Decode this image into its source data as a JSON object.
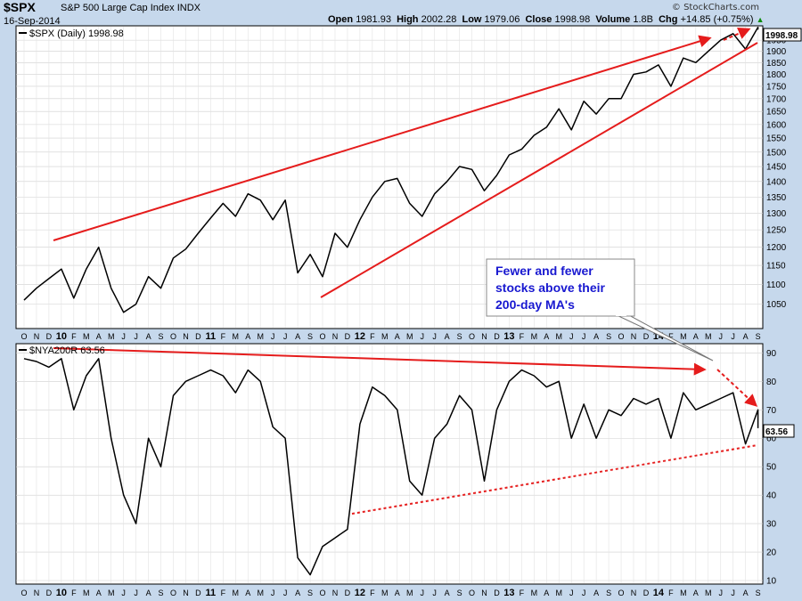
{
  "header": {
    "symbol": "$SPX",
    "name": "S&P 500 Large Cap Index",
    "exchange": "INDX",
    "date": "16-Sep-2014",
    "open_label": "Open",
    "open": "1981.93",
    "high_label": "High",
    "high": "2002.28",
    "low_label": "Low",
    "low": "1979.06",
    "close_label": "Close",
    "close": "1998.98",
    "volume_label": "Volume",
    "volume": "1.8B",
    "chg_label": "Chg",
    "chg": "+14.85 (+0.75%)",
    "brand": "© StockCharts.com"
  },
  "colors": {
    "background": "#c6d8ec",
    "panel": "#ffffff",
    "price_line": "#000000",
    "trend": "#e51c1c",
    "annotation_text": "#1818d0"
  },
  "annotation": {
    "lines": [
      "Fewer and fewer",
      "stocks above their",
      "200-day MA's"
    ]
  },
  "time_axis": {
    "labels": [
      "O",
      "N",
      "D",
      "10",
      "F",
      "M",
      "A",
      "M",
      "J",
      "J",
      "A",
      "S",
      "O",
      "N",
      "D",
      "11",
      "F",
      "M",
      "A",
      "M",
      "J",
      "J",
      "A",
      "S",
      "O",
      "N",
      "D",
      "12",
      "F",
      "M",
      "A",
      "M",
      "J",
      "J",
      "A",
      "S",
      "O",
      "N",
      "D",
      "13",
      "F",
      "M",
      "A",
      "M",
      "J",
      "J",
      "A",
      "S",
      "O",
      "N",
      "D",
      "14",
      "F",
      "M",
      "A",
      "M",
      "J",
      "J",
      "A",
      "S"
    ]
  },
  "chart_data": [
    {
      "type": "line",
      "title": "$SPX (Daily) 1998.98",
      "last_value": "1998.98",
      "x_range": [
        "2009-10",
        "2014-09"
      ],
      "ylim": [
        1000,
        2000
      ],
      "yscale": "log",
      "y_ticks": [
        1050,
        1100,
        1150,
        1200,
        1250,
        1300,
        1350,
        1400,
        1450,
        1500,
        1550,
        1600,
        1650,
        1700,
        1750,
        1800,
        1850,
        1900,
        1950
      ],
      "series": [
        {
          "name": "$SPX (Daily)",
          "points": [
            [
              "2009-10",
              1060
            ],
            [
              "2009-11",
              1090
            ],
            [
              "2009-12",
              1115
            ],
            [
              "2010-01",
              1140
            ],
            [
              "2010-02",
              1065
            ],
            [
              "2010-03",
              1140
            ],
            [
              "2010-04",
              1200
            ],
            [
              "2010-05",
              1090
            ],
            [
              "2010-06",
              1030
            ],
            [
              "2010-07",
              1050
            ],
            [
              "2010-08",
              1120
            ],
            [
              "2010-09",
              1090
            ],
            [
              "2010-10",
              1170
            ],
            [
              "2010-11",
              1195
            ],
            [
              "2010-12",
              1240
            ],
            [
              "2011-01",
              1285
            ],
            [
              "2011-02",
              1330
            ],
            [
              "2011-03",
              1290
            ],
            [
              "2011-04",
              1360
            ],
            [
              "2011-05",
              1340
            ],
            [
              "2011-06",
              1280
            ],
            [
              "2011-07",
              1340
            ],
            [
              "2011-08",
              1130
            ],
            [
              "2011-09",
              1180
            ],
            [
              "2011-10",
              1120
            ],
            [
              "2011-11",
              1240
            ],
            [
              "2011-12",
              1200
            ],
            [
              "2012-01",
              1280
            ],
            [
              "2012-02",
              1350
            ],
            [
              "2012-03",
              1400
            ],
            [
              "2012-04",
              1410
            ],
            [
              "2012-05",
              1330
            ],
            [
              "2012-06",
              1290
            ],
            [
              "2012-07",
              1360
            ],
            [
              "2012-08",
              1400
            ],
            [
              "2012-09",
              1450
            ],
            [
              "2012-10",
              1440
            ],
            [
              "2012-11",
              1370
            ],
            [
              "2012-12",
              1420
            ],
            [
              "2013-01",
              1490
            ],
            [
              "2013-02",
              1510
            ],
            [
              "2013-03",
              1560
            ],
            [
              "2013-04",
              1590
            ],
            [
              "2013-05",
              1660
            ],
            [
              "2013-06",
              1580
            ],
            [
              "2013-07",
              1690
            ],
            [
              "2013-08",
              1640
            ],
            [
              "2013-09",
              1700
            ],
            [
              "2013-10",
              1700
            ],
            [
              "2013-11",
              1800
            ],
            [
              "2013-12",
              1810
            ],
            [
              "2014-01",
              1840
            ],
            [
              "2014-02",
              1750
            ],
            [
              "2014-03",
              1870
            ],
            [
              "2014-04",
              1850
            ],
            [
              "2014-05",
              1900
            ],
            [
              "2014-06",
              1950
            ],
            [
              "2014-07",
              1980
            ],
            [
              "2014-08",
              1910
            ],
            [
              "2014-09",
              2010
            ],
            [
              "2014-09-16",
              1999
            ]
          ]
        }
      ]
    },
    {
      "type": "line",
      "title": "$NYA200R 63.56",
      "last_value": "63.56",
      "x_range": [
        "2009-10",
        "2014-09"
      ],
      "ylim": [
        10,
        92
      ],
      "y_ticks": [
        10,
        20,
        30,
        40,
        50,
        60,
        70,
        80,
        90
      ],
      "series": [
        {
          "name": "$NYA200R",
          "points": [
            [
              "2009-10",
              88
            ],
            [
              "2009-11",
              87
            ],
            [
              "2009-12",
              85
            ],
            [
              "2010-01",
              88
            ],
            [
              "2010-02",
              70
            ],
            [
              "2010-03",
              82
            ],
            [
              "2010-04",
              88
            ],
            [
              "2010-05",
              60
            ],
            [
              "2010-06",
              40
            ],
            [
              "2010-07",
              30
            ],
            [
              "2010-08",
              60
            ],
            [
              "2010-09",
              50
            ],
            [
              "2010-10",
              75
            ],
            [
              "2010-11",
              80
            ],
            [
              "2010-12",
              82
            ],
            [
              "2011-01",
              84
            ],
            [
              "2011-02",
              82
            ],
            [
              "2011-03",
              76
            ],
            [
              "2011-04",
              84
            ],
            [
              "2011-05",
              80
            ],
            [
              "2011-06",
              64
            ],
            [
              "2011-07",
              60
            ],
            [
              "2011-08",
              18
            ],
            [
              "2011-09",
              12
            ],
            [
              "2011-10",
              22
            ],
            [
              "2011-11",
              25
            ],
            [
              "2011-12",
              28
            ],
            [
              "2012-01",
              65
            ],
            [
              "2012-02",
              78
            ],
            [
              "2012-03",
              75
            ],
            [
              "2012-04",
              70
            ],
            [
              "2012-05",
              45
            ],
            [
              "2012-06",
              40
            ],
            [
              "2012-07",
              60
            ],
            [
              "2012-08",
              65
            ],
            [
              "2012-09",
              75
            ],
            [
              "2012-10",
              70
            ],
            [
              "2012-11",
              45
            ],
            [
              "2012-12",
              70
            ],
            [
              "2013-01",
              80
            ],
            [
              "2013-02",
              84
            ],
            [
              "2013-03",
              82
            ],
            [
              "2013-04",
              78
            ],
            [
              "2013-05",
              80
            ],
            [
              "2013-06",
              60
            ],
            [
              "2013-07",
              72
            ],
            [
              "2013-08",
              60
            ],
            [
              "2013-09",
              70
            ],
            [
              "2013-10",
              68
            ],
            [
              "2013-11",
              74
            ],
            [
              "2013-12",
              72
            ],
            [
              "2014-01",
              74
            ],
            [
              "2014-02",
              60
            ],
            [
              "2014-03",
              76
            ],
            [
              "2014-04",
              70
            ],
            [
              "2014-05",
              72
            ],
            [
              "2014-06",
              74
            ],
            [
              "2014-07",
              76
            ],
            [
              "2014-08",
              58
            ],
            [
              "2014-09",
              70
            ],
            [
              "2014-09-16",
              63.56
            ]
          ]
        }
      ]
    }
  ]
}
